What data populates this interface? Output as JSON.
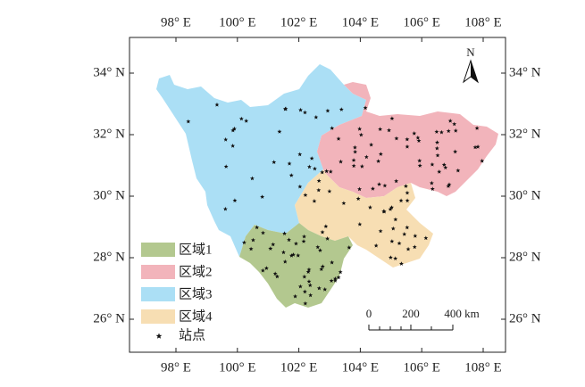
{
  "map": {
    "lon_labels": [
      "98° E",
      "100° E",
      "102° E",
      "104° E",
      "106° E",
      "108° E"
    ],
    "lat_labels": [
      "34° N",
      "32° N",
      "30° N",
      "28° N",
      "26° N"
    ],
    "north": "N",
    "legend": [
      "区域1",
      "区域2",
      "区域3",
      "区域4",
      "站点"
    ],
    "scale": [
      "0",
      "200",
      "400 km"
    ]
  }
}
